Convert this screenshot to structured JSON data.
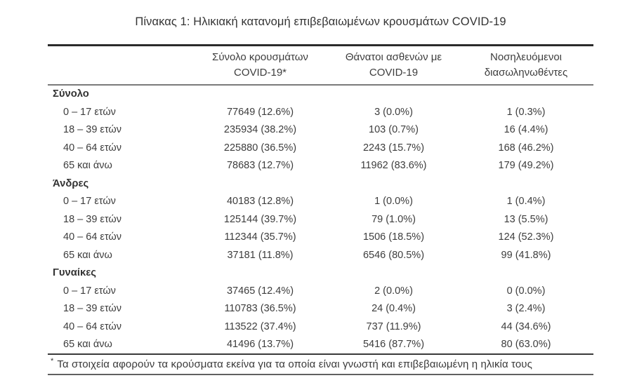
{
  "title": "Πίνακας 1: Ηλικιακή κατανομή επιβεβαιωμένων κρουσμάτων COVID-19",
  "table": {
    "columns": [
      {
        "line1": "Σύνολο κρουσμάτων",
        "line2": "COVID-19*"
      },
      {
        "line1": "Θάνατοι ασθενών με",
        "line2": "COVID-19"
      },
      {
        "line1": "Νοσηλευόμενοι",
        "line2": "διασωληνωθέντες"
      }
    ],
    "sections": [
      {
        "label": "Σύνολο",
        "rows": [
          {
            "age": "0 – 17 ετών",
            "cases": "77649 (12.6%)",
            "deaths": "3 (0.0%)",
            "intubated": "1 (0.3%)"
          },
          {
            "age": "18 – 39 ετών",
            "cases": "235934 (38.2%)",
            "deaths": "103 (0.7%)",
            "intubated": "16 (4.4%)"
          },
          {
            "age": "40 – 64 ετών",
            "cases": "225880 (36.5%)",
            "deaths": "2243 (15.7%)",
            "intubated": "168 (46.2%)"
          },
          {
            "age": "65 και άνω",
            "cases": "78683 (12.7%)",
            "deaths": "11962 (83.6%)",
            "intubated": "179 (49.2%)"
          }
        ]
      },
      {
        "label": "Άνδρες",
        "rows": [
          {
            "age": "0 – 17 ετών",
            "cases": "40183 (12.8%)",
            "deaths": "1 (0.0%)",
            "intubated": "1 (0.4%)"
          },
          {
            "age": "18 – 39 ετών",
            "cases": "125144 (39.7%)",
            "deaths": "79 (1.0%)",
            "intubated": "13 (5.5%)"
          },
          {
            "age": "40 – 64 ετών",
            "cases": "112344 (35.7%)",
            "deaths": "1506 (18.5%)",
            "intubated": "124 (52.3%)"
          },
          {
            "age": "65 και άνω",
            "cases": "37181 (11.8%)",
            "deaths": "6546 (80.5%)",
            "intubated": "99 (41.8%)"
          }
        ]
      },
      {
        "label": "Γυναίκες",
        "rows": [
          {
            "age": "0 – 17 ετών",
            "cases": "37465 (12.4%)",
            "deaths": "2 (0.0%)",
            "intubated": "0 (0.0%)"
          },
          {
            "age": "18 – 39 ετών",
            "cases": "110783 (36.5%)",
            "deaths": "24 (0.4%)",
            "intubated": "3 (2.4%)"
          },
          {
            "age": "40 – 64 ετών",
            "cases": "113522 (37.4%)",
            "deaths": "737 (11.9%)",
            "intubated": "44 (34.6%)"
          },
          {
            "age": "65 και άνω",
            "cases": "41496 (13.7%)",
            "deaths": "5416 (87.7%)",
            "intubated": "80 (63.0%)"
          }
        ]
      }
    ],
    "footnote_marker": "*",
    "footnote_text": "Τα στοιχεία αφορούν τα κρούσματα εκείνα για τα οποία είναι γνωστή και επιβεβαιωμένη η ηλικία τους"
  },
  "colors": {
    "text": "#3d3d3d",
    "rule_dark": "#2b2b2b",
    "rule_gray": "#7a7a7a"
  }
}
